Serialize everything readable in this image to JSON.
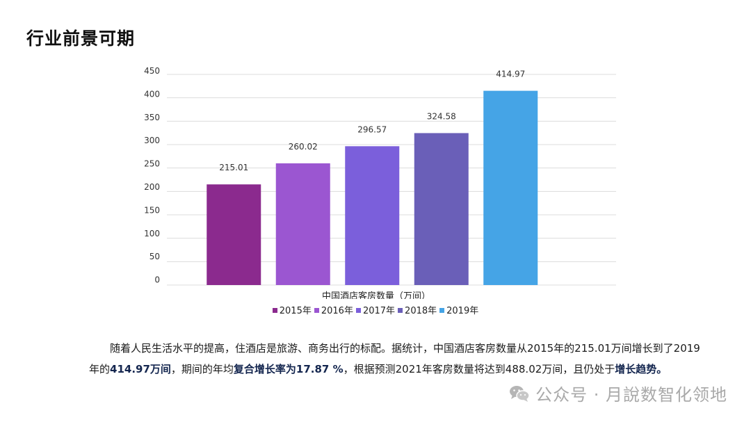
{
  "page": {
    "title": "行业前景可期"
  },
  "chart_data": {
    "type": "bar",
    "categories": [
      "2015年",
      "2016年",
      "2017年",
      "2018年",
      "2019年"
    ],
    "values": [
      215.01,
      260.02,
      296.57,
      324.58,
      414.97
    ],
    "value_labels": [
      "215.01",
      "260.02",
      "296.57",
      "324.58",
      "414.97"
    ],
    "colors": [
      "#8b2a8e",
      "#9b56d1",
      "#7b5fdb",
      "#6a5fb8",
      "#45a4e6"
    ],
    "xlabel": "中国酒店客房数量（万间）",
    "ylabel": "",
    "ylim": [
      0,
      450
    ],
    "yticks": [
      "450",
      "400",
      "350",
      "300",
      "250",
      "200",
      "150",
      "100",
      "50",
      "0"
    ],
    "grid": true,
    "legend": "bottom"
  },
  "paragraph": {
    "p1": "随着人民生活水平的提高，住酒店是旅游、商务出行的标配。据统计，中国酒店客房数量从2015年的215.01万间增长到了2019年的",
    "b1": "414.97万间",
    "p2": "，期间的年均",
    "b2": "复合增长率为17.87 %",
    "p3": "，根据预测2021年客房数量将达到488.02万间，且仍处于",
    "b3": "增长趋势。"
  },
  "watermark": {
    "text": "公众号 · 月說数智化领地",
    "icon": "wechat-icon"
  }
}
